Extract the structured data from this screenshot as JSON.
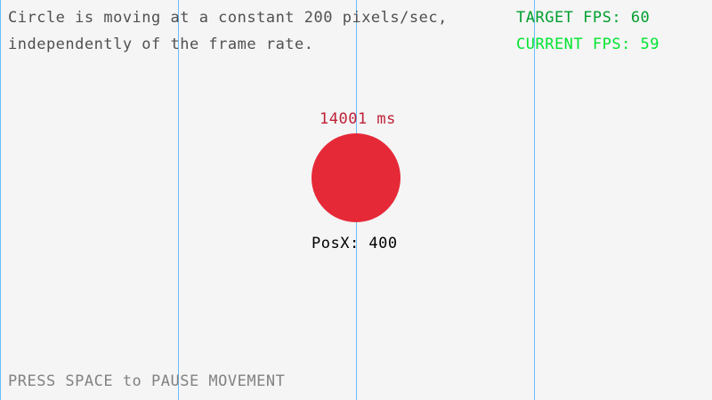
{
  "description_lines": [
    "Circle is moving at a constant 200 pixels/sec,",
    "independently of the frame rate."
  ],
  "target_fps_label": "TARGET FPS: 60",
  "current_fps_label": "CURRENT FPS: 59",
  "elapsed_label": "14001 ms",
  "posx_label": "PosX: 400",
  "hint": "PRESS SPACE to PAUSE MOVEMENT",
  "colors": {
    "circle": "#e62937",
    "elapsed": "#be2137",
    "target_fps": "#009e2f",
    "current_fps": "#00e430",
    "grid_line": "#66bfff",
    "text": "#505050",
    "hint": "#828282",
    "posx": "#000000"
  }
}
